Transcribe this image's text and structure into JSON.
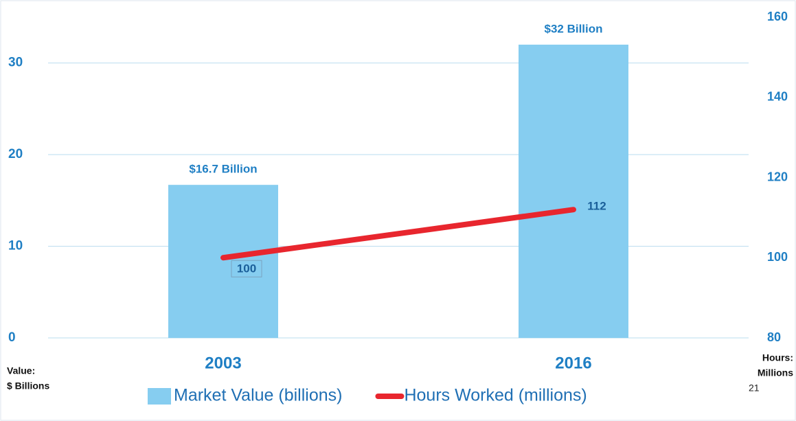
{
  "chart_data": {
    "type": "bar",
    "categories": [
      "2003",
      "2016"
    ],
    "series": [
      {
        "name": "Market Value (billions)",
        "type": "bar",
        "color": "#86cdf0",
        "values": [
          16.7,
          32
        ],
        "value_labels": [
          "$16.7 Billion",
          "$32 Billion"
        ]
      },
      {
        "name": "Hours Worked (millions)",
        "type": "line",
        "axis": "y2",
        "color": "#e8262e",
        "values": [
          100,
          112
        ],
        "value_labels": [
          "100",
          "112"
        ]
      }
    ],
    "ylim": [
      0,
      35
    ],
    "yticks": [
      0,
      10,
      20,
      30
    ],
    "y2lim": [
      80,
      160
    ],
    "y2ticks": [
      80,
      100,
      120,
      140,
      160
    ],
    "ylabel": [
      "Value:",
      "$ Billions"
    ],
    "y2label": [
      "Hours:",
      "Millions"
    ],
    "grid": true,
    "legend": "bottom",
    "page_number": "21"
  }
}
